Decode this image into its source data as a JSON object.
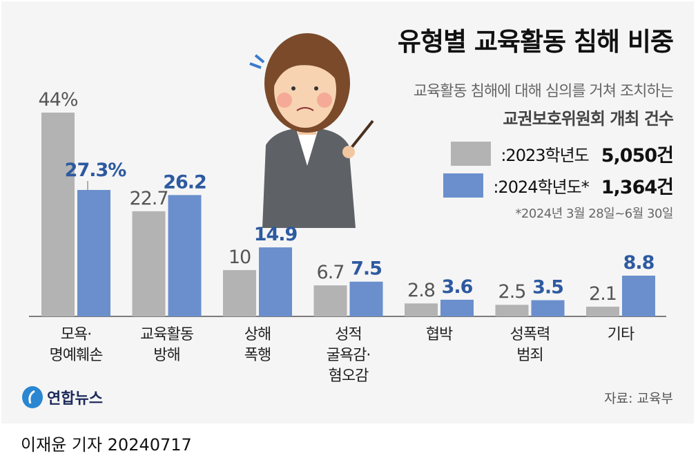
{
  "chart_data": {
    "type": "bar",
    "title": "유형별 교육활동 침해 비중",
    "subtitle_line1": "교육활동 침해에 대해 심의를 거쳐 조치하는",
    "subtitle_line2": "교권보호위원회 개최 건수",
    "categories": [
      "모욕·\n명예훼손",
      "교육활동\n방해",
      "상해\n폭행",
      "성적\n굴욕감·\n혐오감",
      "협박",
      "성폭력\n범죄",
      "기타"
    ],
    "series": [
      {
        "name": ":2023학년도",
        "total": "5,050건",
        "color": "#b3b3b3",
        "label_color": "#555555",
        "values": [
          44,
          22.7,
          10,
          6.7,
          2.8,
          2.5,
          2.1
        ],
        "labels": [
          "44%",
          "22.7",
          "10",
          "6.7",
          "2.8",
          "2.5",
          "2.1"
        ]
      },
      {
        "name": ":2024학년도*",
        "total": "1,364건",
        "color": "#6a8fcc",
        "label_color": "#2d5aa0",
        "values": [
          27.3,
          26.2,
          14.9,
          7.5,
          3.6,
          3.5,
          8.8
        ],
        "labels": [
          "27.3%",
          "26.2",
          "14.9",
          "7.5",
          "3.6",
          "3.5",
          "8.8"
        ]
      }
    ],
    "unit": "%",
    "ylim": [
      0,
      44
    ],
    "grid": false,
    "legend_position": "top-right",
    "note": "*2024년 3월 28일~6월 30일",
    "source": "자료: 교육부"
  },
  "logo_text": "연합뉴스",
  "byline": "이재윤 기자  20240717"
}
